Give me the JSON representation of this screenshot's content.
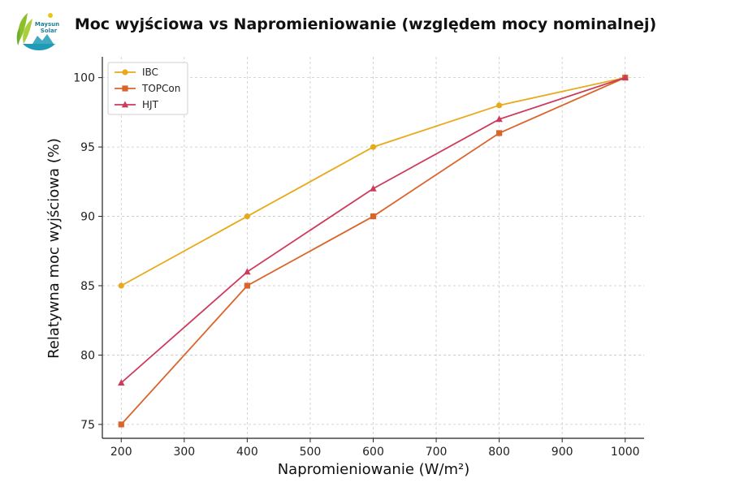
{
  "brand": {
    "name_line1": "Maysun",
    "name_line2": "Solar",
    "colors": {
      "green": "#8cbf2a",
      "teal": "#1f9bb5",
      "yellow": "#e8c619"
    }
  },
  "chart_data": {
    "type": "line",
    "title": "Moc wyjściowa vs Napromieniowanie (względem mocy nominalnej)",
    "xlabel": "Napromieniowanie (W/m²)",
    "ylabel": "Relatywna moc wyjściowa (%)",
    "xlim": [
      170,
      1030
    ],
    "ylim": [
      74,
      101.5
    ],
    "xticks": [
      200,
      300,
      400,
      500,
      600,
      700,
      800,
      900,
      1000
    ],
    "yticks": [
      75,
      80,
      85,
      90,
      95,
      100
    ],
    "grid": true,
    "legend_position": "top-left",
    "x": [
      200,
      400,
      600,
      800,
      1000
    ],
    "series": [
      {
        "name": "IBC",
        "values": [
          85,
          90,
          95,
          98,
          100
        ],
        "color": "#e8a91a",
        "marker": "circle"
      },
      {
        "name": "TOPCon",
        "values": [
          75,
          85,
          90,
          96,
          100
        ],
        "color": "#d9652a",
        "marker": "square"
      },
      {
        "name": "HJT",
        "values": [
          78,
          86,
          92,
          97,
          100
        ],
        "color": "#cc3a5c",
        "marker": "triangle"
      }
    ]
  }
}
